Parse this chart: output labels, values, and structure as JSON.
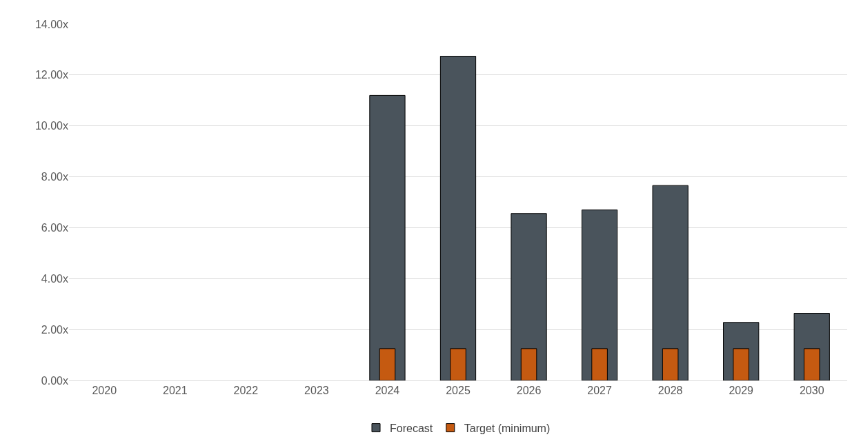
{
  "chart_data": {
    "type": "bar",
    "categories": [
      "2020",
      "2021",
      "2022",
      "2023",
      "2024",
      "2025",
      "2026",
      "2027",
      "2028",
      "2029",
      "2030"
    ],
    "series": [
      {
        "name": "Forecast",
        "color": "#4a545c",
        "values": [
          null,
          null,
          null,
          null,
          11.2,
          12.74,
          6.56,
          6.7,
          7.66,
          2.28,
          2.64
        ]
      },
      {
        "name": "Target (minimum)",
        "color": "#c55a11",
        "values": [
          null,
          null,
          null,
          null,
          1.25,
          1.25,
          1.25,
          1.25,
          1.25,
          1.25,
          1.25
        ]
      }
    ],
    "ylim": [
      0,
      14
    ],
    "yticks": [
      {
        "value": 0,
        "label": "0.00x"
      },
      {
        "value": 2,
        "label": "2.00x"
      },
      {
        "value": 4,
        "label": "4.00x"
      },
      {
        "value": 6,
        "label": "6.00x"
      },
      {
        "value": 8,
        "label": "8.00x"
      },
      {
        "value": 10,
        "label": "10.00x"
      },
      {
        "value": 12,
        "label": "12.00x"
      },
      {
        "value": 14,
        "label": "14.00x"
      }
    ],
    "grid": "y",
    "legend": "bottom"
  }
}
